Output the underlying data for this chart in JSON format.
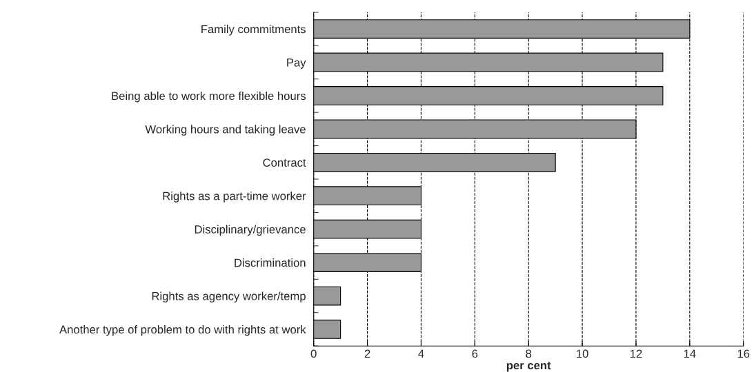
{
  "chart_data": {
    "type": "bar",
    "orientation": "horizontal",
    "xlabel": "per cent",
    "categories": [
      "Family commitments",
      "Pay",
      "Being able to work more flexible hours",
      "Working hours and taking leave",
      "Contract",
      "Rights as a part-time worker",
      "Disciplinary/grievance",
      "Discrimination",
      "Rights as agency worker/temp",
      "Another type of problem to do with rights at work"
    ],
    "values": [
      14,
      13,
      13,
      12,
      9,
      4,
      4,
      4,
      1,
      1
    ],
    "color": "#999999",
    "xlim": [
      0,
      16
    ],
    "xticks": [
      0,
      2,
      4,
      6,
      8,
      10,
      12,
      14,
      16
    ],
    "grid": "x",
    "line_style": "dashed",
    "legend": false
  }
}
